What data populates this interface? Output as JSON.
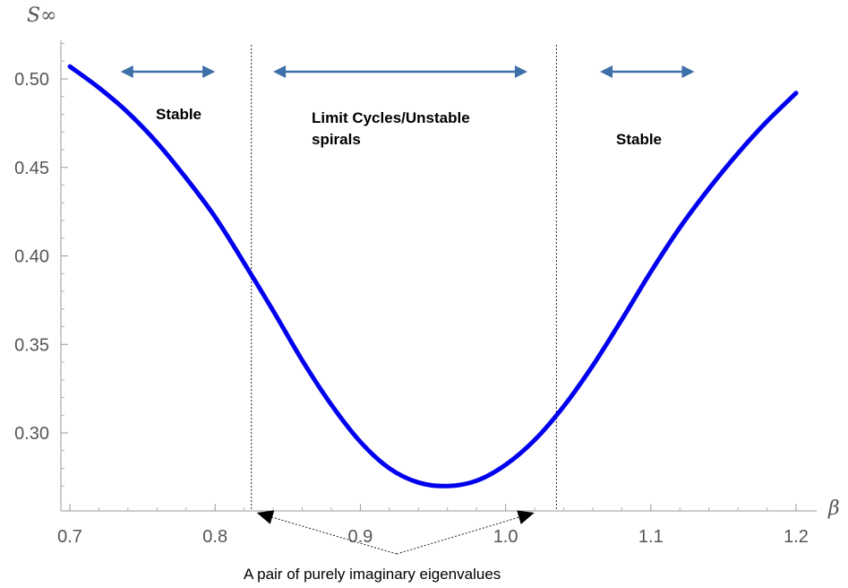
{
  "chart_data": {
    "type": "line",
    "title": "",
    "xlabel": "β",
    "ylabel": "S∞",
    "xlim": [
      0.7,
      1.2
    ],
    "ylim": [
      0.265,
      0.52
    ],
    "grid": false,
    "x_ticks": [
      0.7,
      0.8,
      0.9,
      1.0,
      1.1,
      1.2
    ],
    "x_tick_labels": [
      "0.7",
      "0.8",
      "0.9",
      "1.0",
      "1.1",
      "1.2"
    ],
    "y_ticks": [
      0.3,
      0.35,
      0.4,
      0.45,
      0.5
    ],
    "y_tick_labels": [
      "0.30",
      "0.35",
      "0.40",
      "0.45",
      "0.50"
    ],
    "curve_color": "#0000ee",
    "series": [
      {
        "x": [
          0.7,
          0.72,
          0.74,
          0.76,
          0.78,
          0.8,
          0.82,
          0.84,
          0.86,
          0.88,
          0.9,
          0.92,
          0.94,
          0.96,
          0.98,
          1.0,
          1.02,
          1.04,
          1.06,
          1.08,
          1.1,
          1.12,
          1.14,
          1.16,
          1.18,
          1.2
        ],
        "values": [
          0.507,
          0.495,
          0.481,
          0.464,
          0.444,
          0.422,
          0.396,
          0.369,
          0.341,
          0.316,
          0.295,
          0.28,
          0.272,
          0.27,
          0.273,
          0.282,
          0.296,
          0.315,
          0.338,
          0.364,
          0.391,
          0.416,
          0.438,
          0.458,
          0.476,
          0.492
        ]
      }
    ],
    "boundaries": [
      0.825,
      1.035
    ],
    "regions": [
      {
        "label": "Stable",
        "from": 0.735,
        "to": 0.8
      },
      {
        "label": "Limit Cycles/Unstable",
        "label_line2": "spirals",
        "from": 0.84,
        "to": 1.015
      },
      {
        "label": "Stable",
        "from": 1.065,
        "to": 1.13
      }
    ],
    "arrow_color": "#3d6fa8",
    "annotation": "A pair of purely imaginary eigenvalues"
  }
}
